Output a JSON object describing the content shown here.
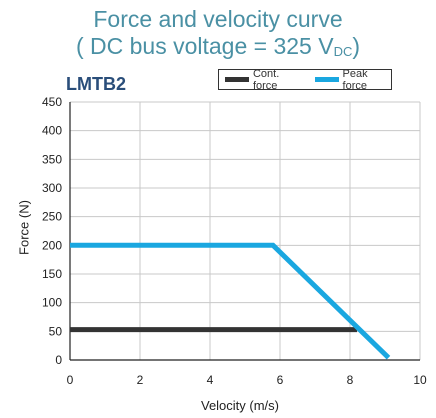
{
  "header": {
    "title_line1": "Force and velocity curve",
    "title_line2": "( DC bus voltage = 325 V",
    "title_sub": "DC",
    "title_close": ")"
  },
  "chart_data": {
    "type": "line",
    "model_label": "LMTB2",
    "xlabel": "Velocity (m/s)",
    "ylabel": "Force (N)",
    "xlim": [
      0,
      10
    ],
    "ylim": [
      0,
      450
    ],
    "xticks": [
      0,
      2,
      4,
      6,
      8,
      10
    ],
    "yticks": [
      0,
      50,
      100,
      150,
      200,
      250,
      300,
      350,
      400,
      450
    ],
    "grid": true,
    "legend_position": "top-right",
    "series": [
      {
        "name": "Cont. force",
        "color": "#333333",
        "x": [
          0,
          8.2
        ],
        "y": [
          53,
          53
        ]
      },
      {
        "name": "Peak force",
        "color": "#1aa7e0",
        "x": [
          0,
          5.8,
          9.1
        ],
        "y": [
          200,
          200,
          4
        ]
      }
    ]
  }
}
